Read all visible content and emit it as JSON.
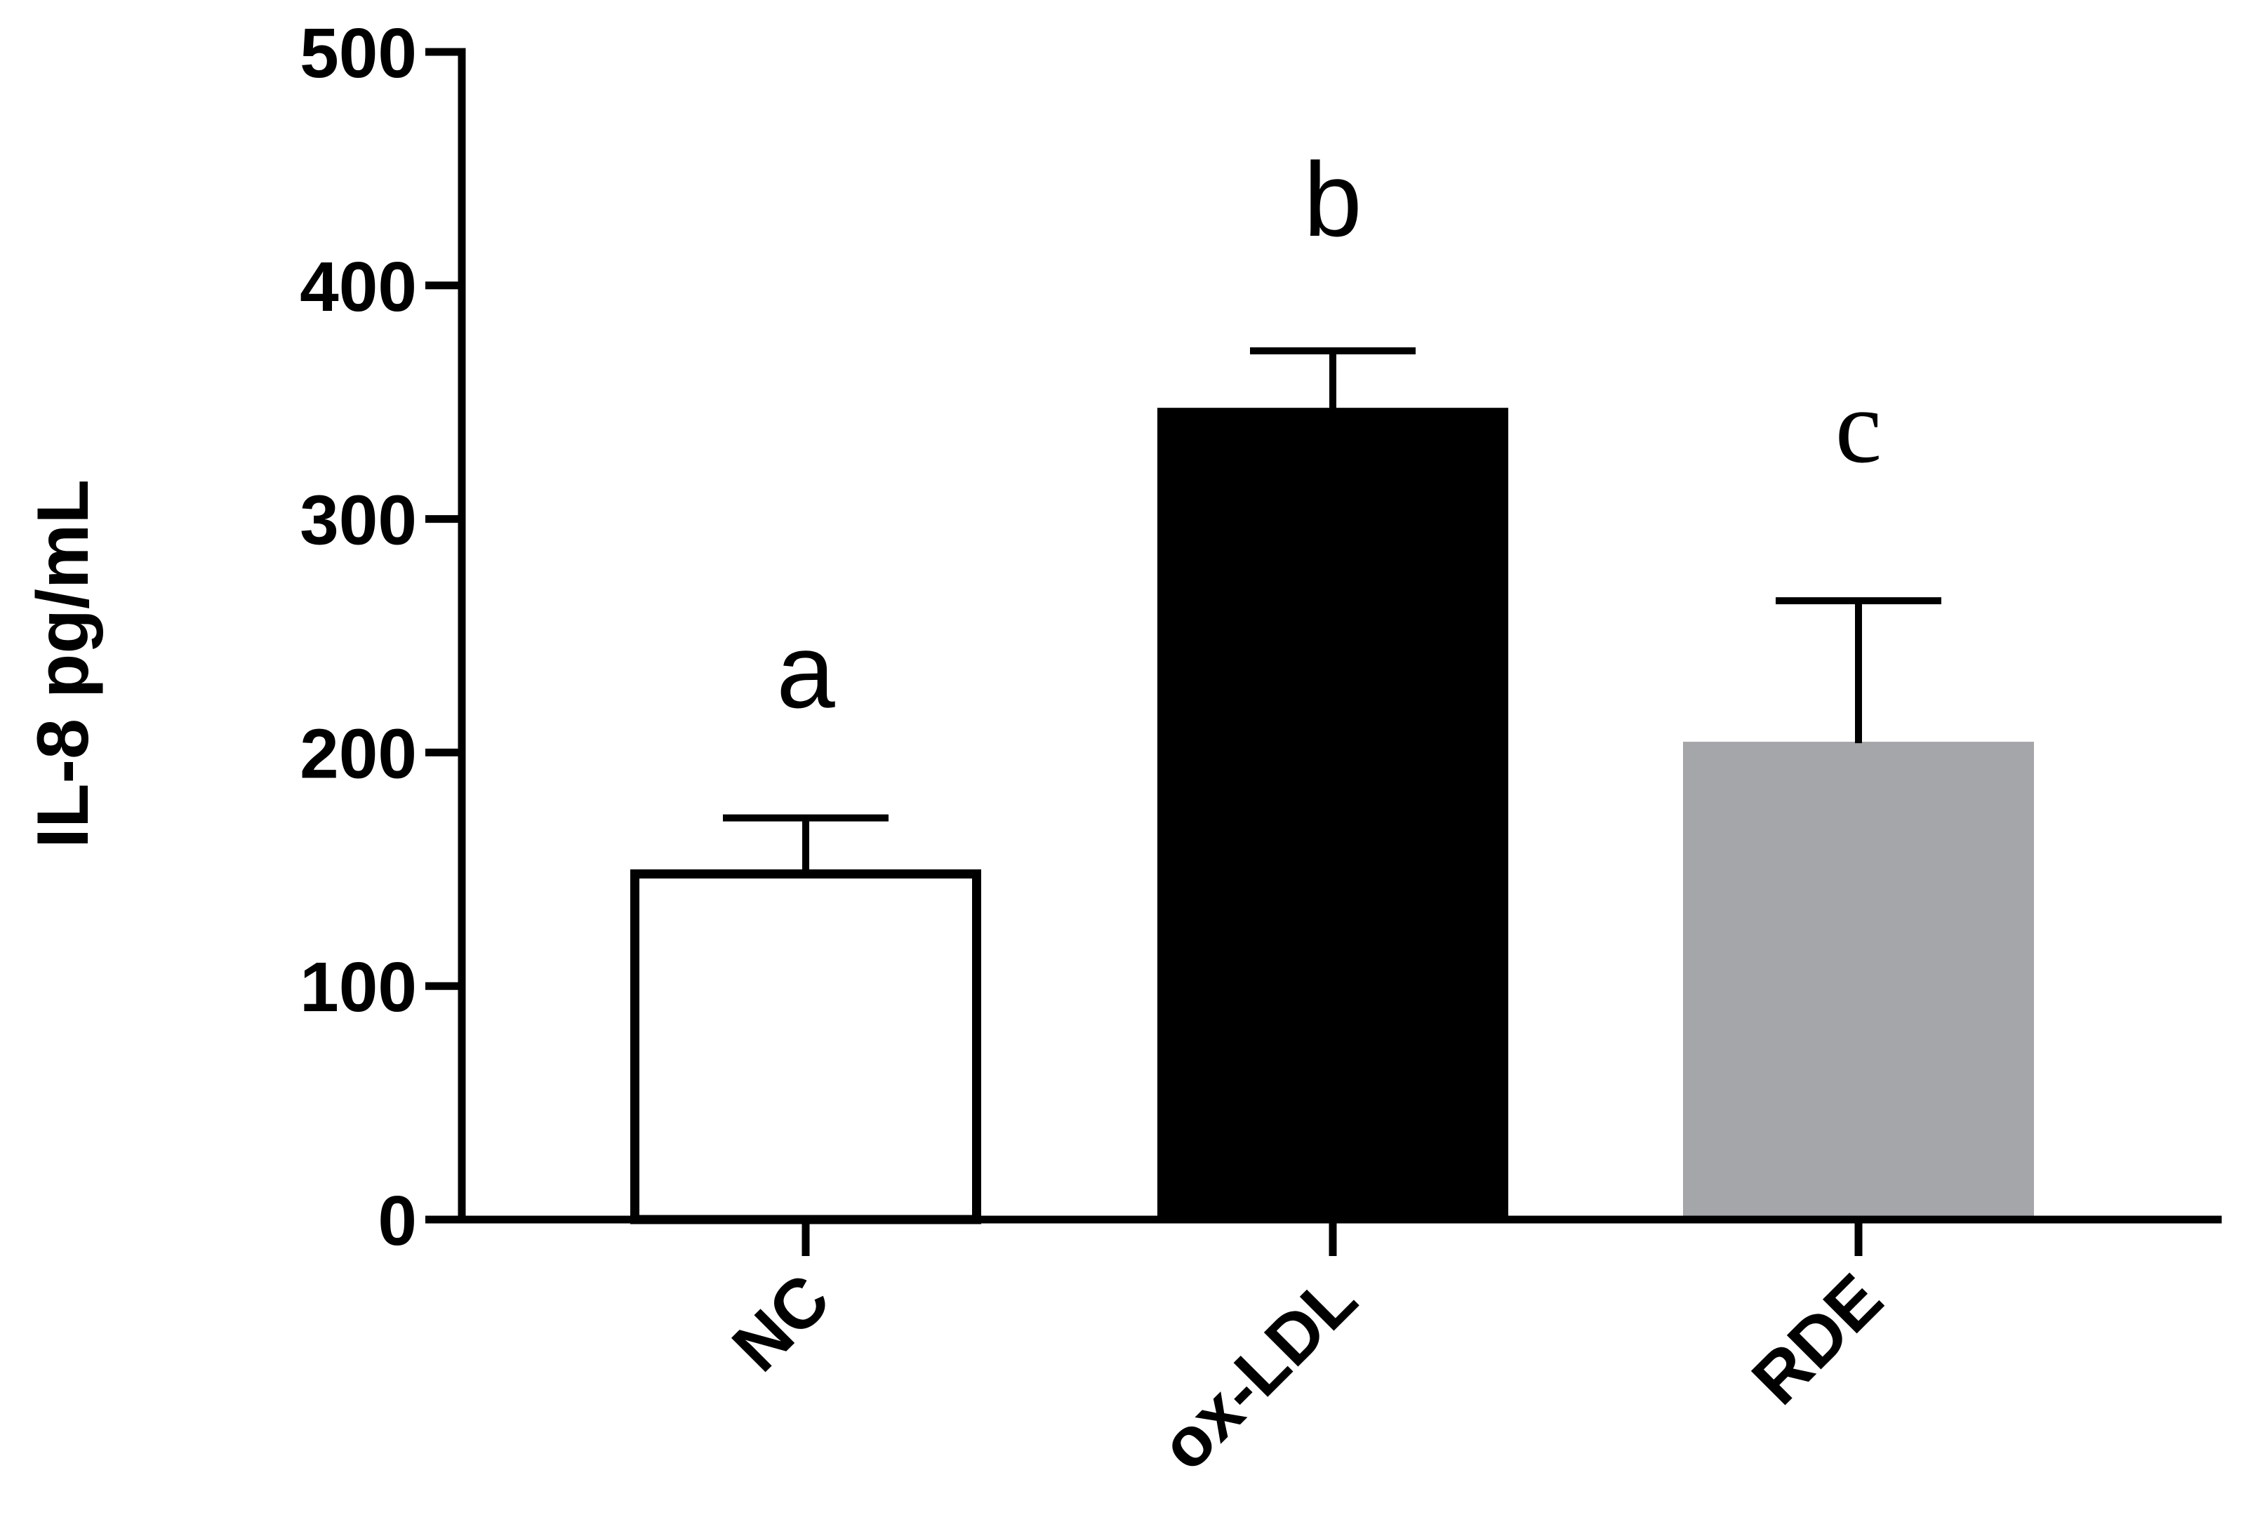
{
  "chart_data": {
    "type": "bar",
    "title": "",
    "xlabel": "",
    "ylabel": "IL-8 pg/mL",
    "ylim": [
      0,
      500
    ],
    "yticks": [
      0,
      100,
      200,
      300,
      400,
      500
    ],
    "categories": [
      "NC",
      "ox-LDL",
      "RDE"
    ],
    "values": [
      148,
      347,
      204
    ],
    "error_upper": [
      172,
      372,
      265
    ],
    "significance_labels": [
      "a",
      "b",
      "c"
    ],
    "bar_fill_colors": [
      "#ffffff",
      "#000000",
      "#a5a6a9"
    ],
    "bar_stroke_colors": [
      "#000000",
      "#000000",
      "#a5a6a9"
    ],
    "grid": false,
    "legend": "none"
  }
}
